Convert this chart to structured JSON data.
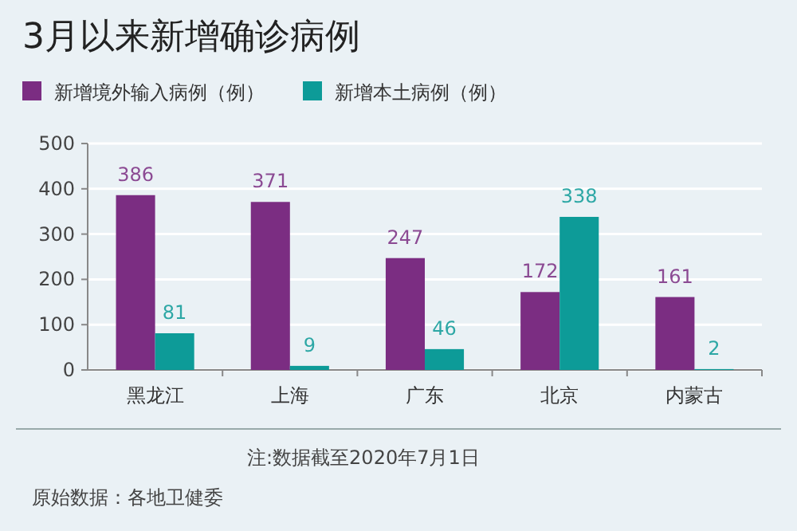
{
  "chart_data": {
    "type": "bar",
    "title": "3月以来新增确诊病例",
    "categories": [
      "黑龙江",
      "上海",
      "广东",
      "北京",
      "内蒙古"
    ],
    "series": [
      {
        "name": "新增境外输入病例（例）",
        "color": "#7b2d82",
        "values": [
          386,
          371,
          247,
          172,
          161
        ]
      },
      {
        "name": "新增本土病例（例）",
        "color": "#0d9b98",
        "values": [
          81,
          9,
          46,
          338,
          2
        ]
      }
    ],
    "ylim": [
      0,
      500
    ],
    "yticks": [
      0,
      100,
      200,
      300,
      400,
      500
    ],
    "grid": "y",
    "legend": "top left",
    "data_labels": true,
    "annotations": [
      "注:数据截至2020年7月1日",
      "原始数据：各地卫健委"
    ]
  }
}
